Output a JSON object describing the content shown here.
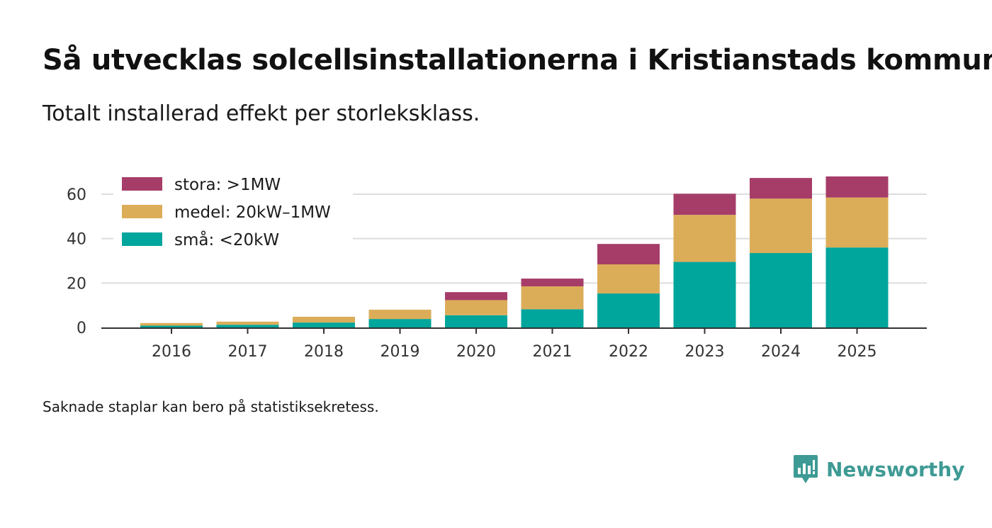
{
  "title": "Så utvecklas solcellsinstallationerna i Kristianstads kommun",
  "subtitle": "Totalt installerad effekt per storleksklass.",
  "footnote": "Saknade staplar kan bero på statistiksekretess.",
  "brand": {
    "name": "Newsworthy",
    "icon": "newsworthy-logo-icon",
    "color": "#3e9a94"
  },
  "chart_data": {
    "type": "bar",
    "stacked": true,
    "title": "Så utvecklas solcellsinstallationerna i Kristianstads kommun",
    "xlabel": "",
    "ylabel": "",
    "ylim": [
      0,
      70
    ],
    "yticks": [
      0,
      20,
      40,
      60
    ],
    "grid": true,
    "legend_position": "top-left",
    "categories": [
      "2016",
      "2017",
      "2018",
      "2019",
      "2020",
      "2021",
      "2022",
      "2023",
      "2024",
      "2025"
    ],
    "series": [
      {
        "name": "små: <20kW",
        "color": "#00a59c",
        "values": [
          0.8,
          1.2,
          2.2,
          3.8,
          5.5,
          8.2,
          15.3,
          29.5,
          33.5,
          36.0
        ]
      },
      {
        "name": "medel: 20kW–1MW",
        "color": "#dcad59",
        "values": [
          1.2,
          1.4,
          2.6,
          4.2,
          6.8,
          10.3,
          13.1,
          21.2,
          24.5,
          22.5
        ]
      },
      {
        "name": "stora: >1MW",
        "color": "#a63d68",
        "values": [
          0,
          0,
          0,
          0,
          3.6,
          3.5,
          9.2,
          9.5,
          9.3,
          9.5
        ]
      }
    ]
  }
}
